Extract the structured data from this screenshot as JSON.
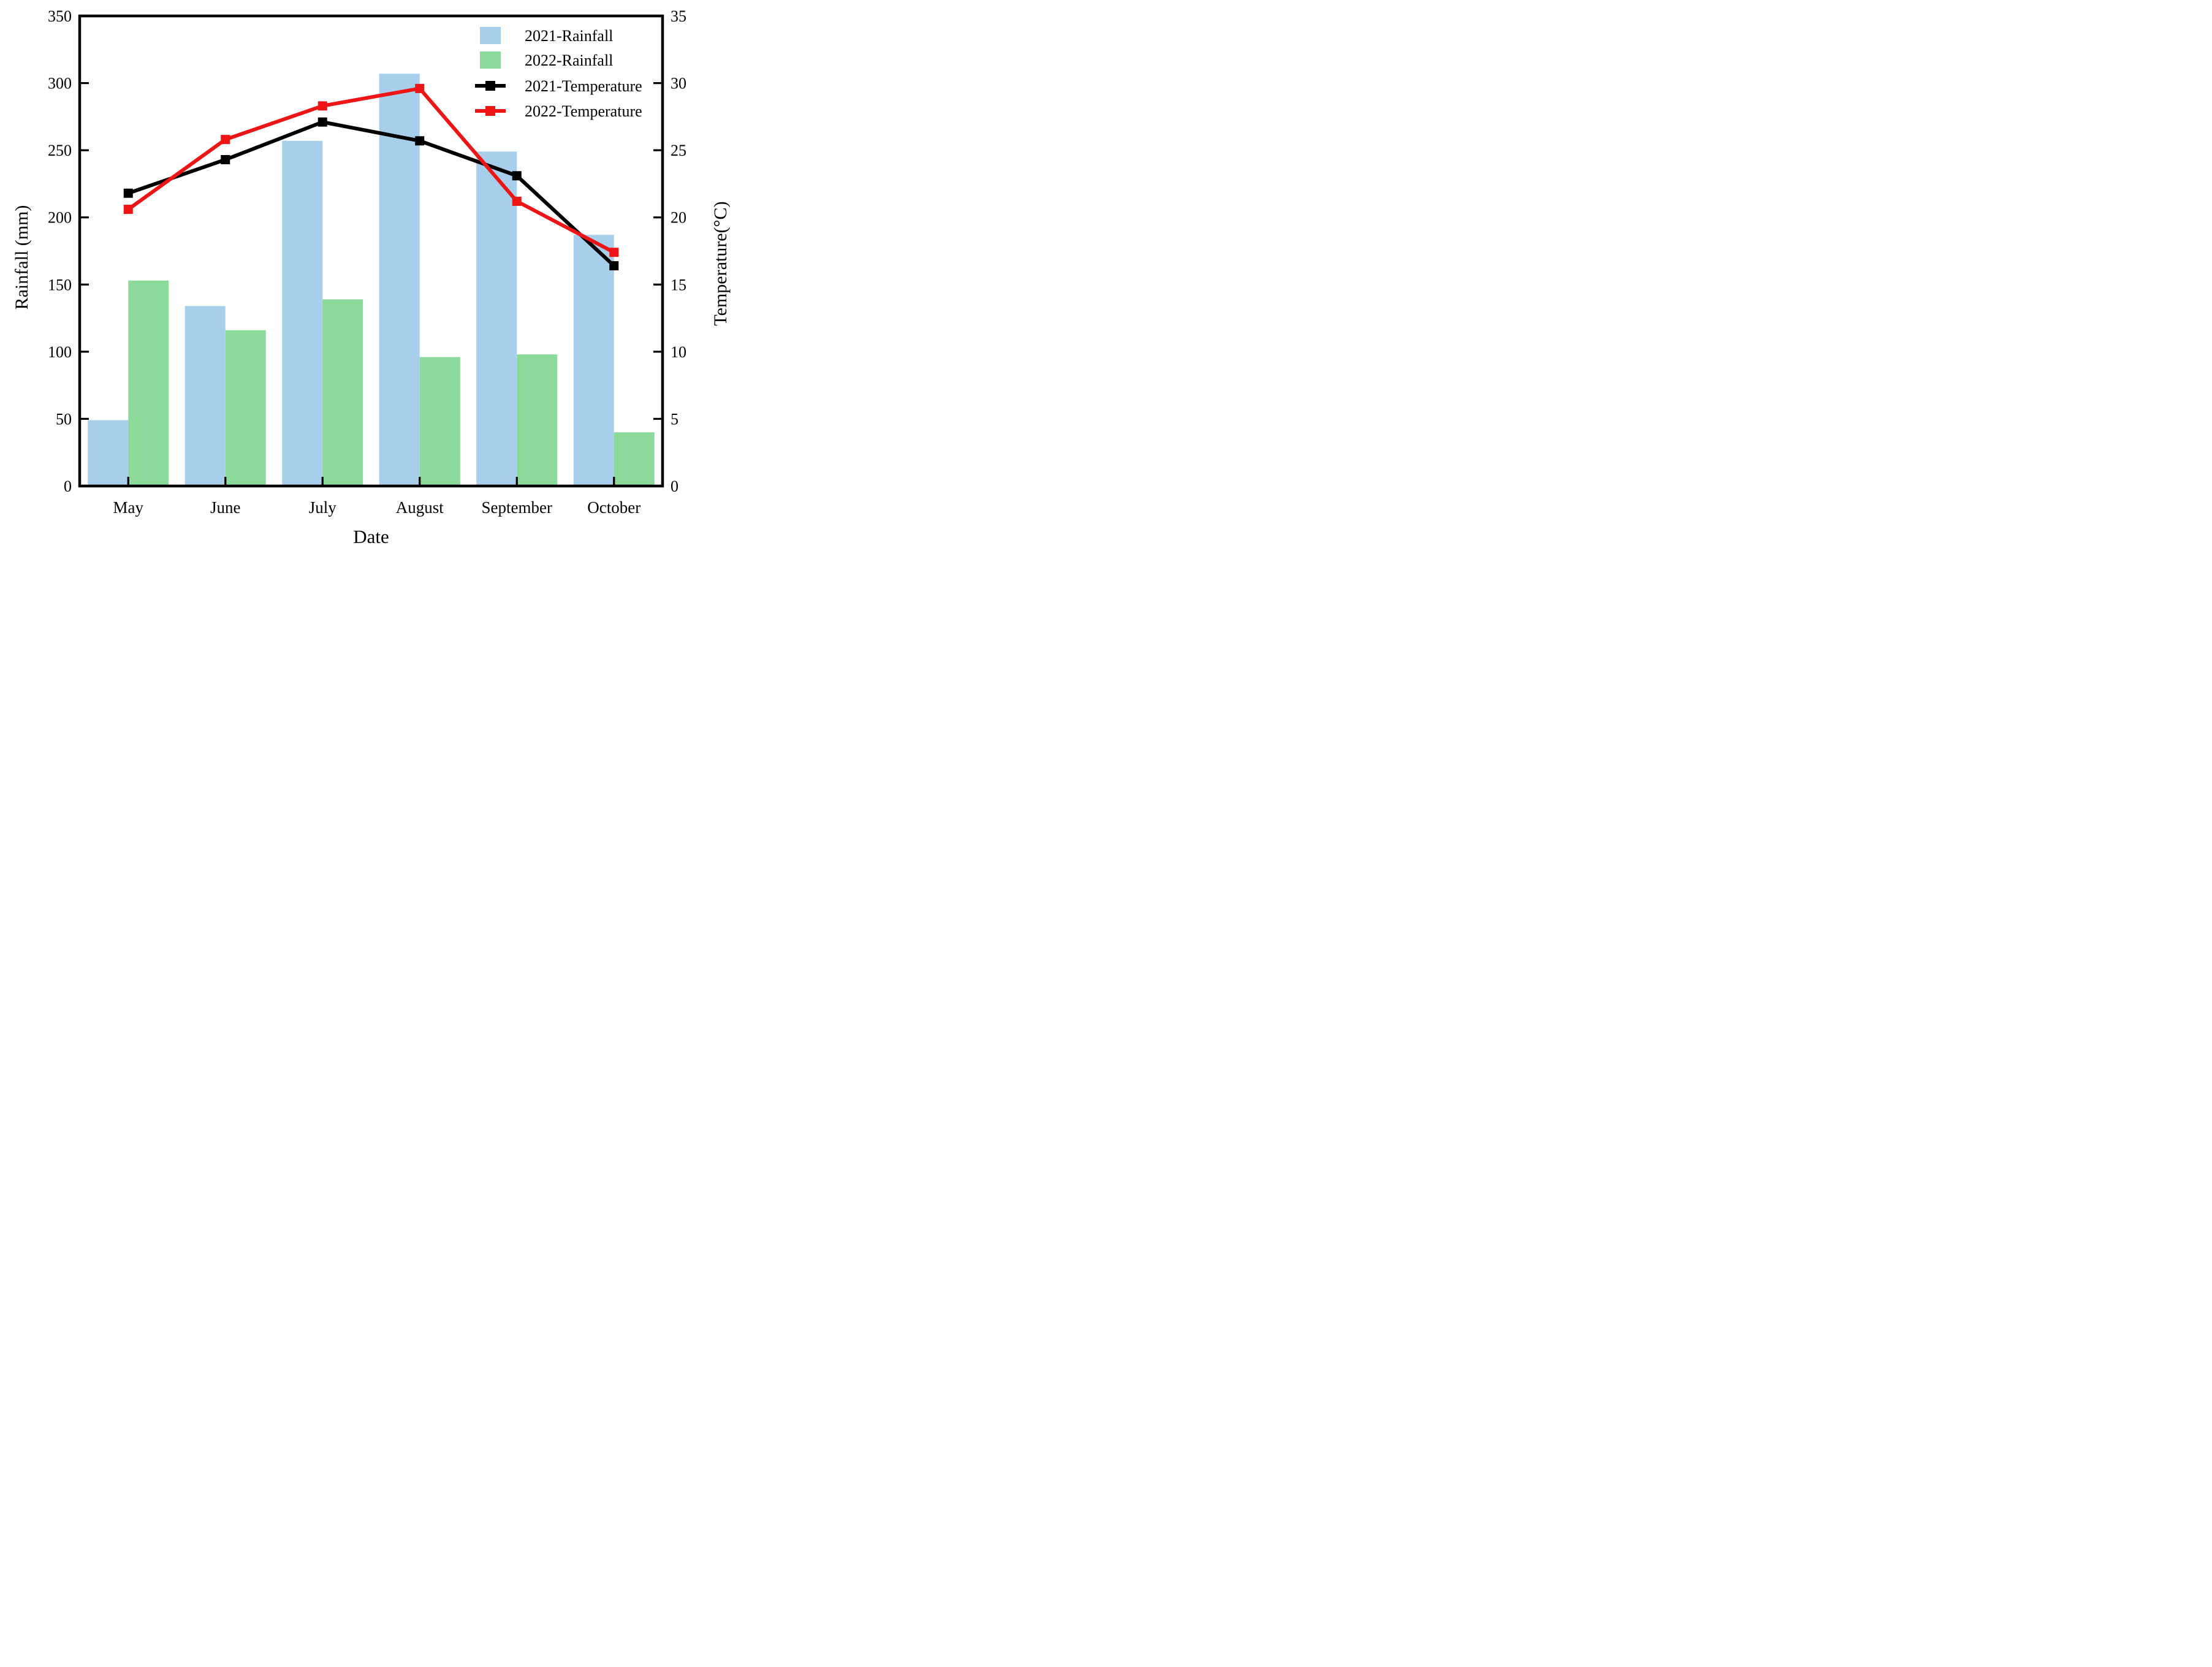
{
  "figure": {
    "background": "#ffffff"
  },
  "chart_data": {
    "type": "bar+line",
    "categories": [
      "May",
      "June",
      "July",
      "August",
      "September",
      "October"
    ],
    "series": [
      {
        "name": "2021-Rainfall",
        "type": "bar",
        "axis": "left",
        "color": "#A7CEEA",
        "values": [
          49,
          134,
          257,
          307,
          249,
          187
        ]
      },
      {
        "name": "2022-Rainfall",
        "type": "bar",
        "axis": "left",
        "color": "#8CDA9A",
        "values": [
          153,
          116,
          139,
          96,
          98,
          40
        ]
      },
      {
        "name": "2021-Temperature",
        "type": "line",
        "axis": "right",
        "color": "#000000",
        "marker": "square",
        "values": [
          21.8,
          24.3,
          27.1,
          25.7,
          23.1,
          16.4
        ]
      },
      {
        "name": "2022-Temperature",
        "type": "line",
        "axis": "right",
        "color": "#ED1515",
        "marker": "square",
        "values": [
          20.6,
          25.8,
          28.3,
          29.6,
          21.2,
          17.4
        ]
      }
    ],
    "left_axis": {
      "label": "Rainfall (mm)",
      "min": 0,
      "max": 350,
      "ticks": [
        0,
        50,
        100,
        150,
        200,
        250,
        300,
        350
      ]
    },
    "right_axis": {
      "label": "Temperature(°C)",
      "min": 0,
      "max": 35,
      "ticks": [
        0,
        5,
        10,
        15,
        20,
        25,
        30,
        35
      ]
    },
    "x_axis": {
      "label": "Date"
    },
    "legend": {
      "position": "top-right-inside",
      "entries": [
        "2021-Rainfall",
        "2022-Rainfall",
        "2021-Temperature",
        "2022-Temperature"
      ]
    },
    "grid": false,
    "tick_direction": "in"
  }
}
